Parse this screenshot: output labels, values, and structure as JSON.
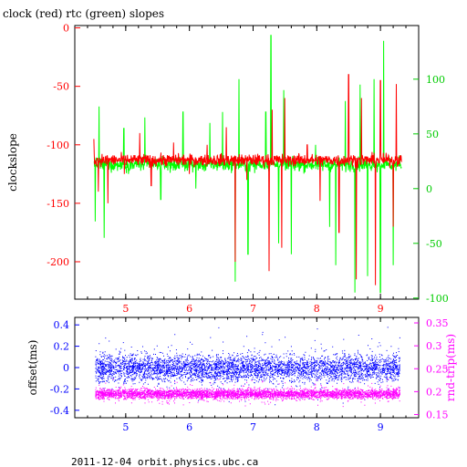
{
  "title": "clock (red) rtc (green) slopes",
  "footer": "2011-12-04  orbit.physics.ubc.ca",
  "colors": {
    "clock": "#ff0000",
    "rtc": "#00ff00",
    "offset": "#0000ff",
    "roundtrip": "#ff00ff",
    "axis_black": "#000000",
    "top_left_ticks": "#ff0000",
    "top_right_ticks": "#00cc00",
    "bottom_left_ticks": "#0000ff",
    "bottom_right_ticks": "#ff00ff",
    "bottom_x_ticks": "#0000ff",
    "top_x_ticks": "#ff0000"
  },
  "chart_data": [
    {
      "type": "line",
      "title": "clock (red) rtc (green) slopes",
      "ylabel": "clockslope",
      "y2label": "",
      "xlim": [
        4.2,
        9.6
      ],
      "ylim": [
        -232,
        2
      ],
      "y2lim": [
        -101,
        149
      ],
      "x_ticks": [
        5,
        6,
        7,
        8,
        9
      ],
      "y_ticks": [
        0,
        -50,
        -100,
        -150,
        -200
      ],
      "y2_ticks": [
        100,
        50,
        0,
        -50,
        -100
      ],
      "grid": false,
      "series": [
        {
          "name": "clock",
          "color": "#ff0000",
          "axis": "left",
          "baseline": -113,
          "noise": 5,
          "x": [
            4.5,
            4.57,
            4.72,
            4.98,
            5.22,
            5.4,
            5.75,
            6.0,
            6.28,
            6.58,
            6.72,
            6.9,
            7.25,
            7.3,
            7.45,
            7.5,
            7.85,
            8.05,
            8.35,
            8.5,
            8.62,
            8.7,
            8.92,
            9.0,
            9.2,
            9.25
          ],
          "y": [
            -95,
            -140,
            -150,
            -125,
            -90,
            -135,
            -98,
            -125,
            -100,
            -85,
            -200,
            -130,
            -208,
            -70,
            -188,
            -60,
            -100,
            -148,
            -175,
            -40,
            -215,
            -60,
            -220,
            -45,
            -170,
            -48
          ]
        },
        {
          "name": "rtc",
          "color": "#00ff00",
          "axis": "right",
          "baseline": 22,
          "noise": 6,
          "x": [
            4.52,
            4.58,
            4.66,
            4.97,
            5.3,
            5.55,
            5.9,
            6.1,
            6.32,
            6.52,
            6.72,
            6.78,
            6.92,
            7.2,
            7.28,
            7.4,
            7.48,
            7.6,
            7.98,
            8.2,
            8.3,
            8.45,
            8.6,
            8.68,
            8.8,
            8.9,
            9.0,
            9.05,
            9.2,
            9.3
          ],
          "y": [
            -30,
            75,
            -45,
            55,
            65,
            -10,
            70,
            0,
            60,
            70,
            -85,
            100,
            -60,
            70,
            140,
            -50,
            90,
            -60,
            40,
            -35,
            -70,
            80,
            -95,
            95,
            -80,
            100,
            -95,
            135,
            -70,
            30
          ]
        }
      ]
    },
    {
      "type": "scatter",
      "ylabel": "offset(ms)",
      "y2label": "rnd-trip(ms)",
      "xlim": [
        4.2,
        9.6
      ],
      "ylim": [
        -0.47,
        0.47
      ],
      "y2lim": [
        0.143,
        0.362
      ],
      "x_ticks": [
        5,
        6,
        7,
        8,
        9
      ],
      "y_ticks": [
        0.4,
        0.2,
        0,
        -0.2,
        -0.4
      ],
      "y2_ticks": [
        0.35,
        0.3,
        0.25,
        0.2,
        0.15
      ],
      "grid": false,
      "series": [
        {
          "name": "offset",
          "color": "#0000ff",
          "axis": "left",
          "baseline": 0.0,
          "spread": 0.12,
          "x_range": [
            4.52,
            9.3
          ]
        },
        {
          "name": "rnd-trip",
          "color": "#ff00ff",
          "axis": "right",
          "baseline": 0.196,
          "spread": 0.01,
          "x_range": [
            4.52,
            9.3
          ]
        }
      ]
    }
  ]
}
